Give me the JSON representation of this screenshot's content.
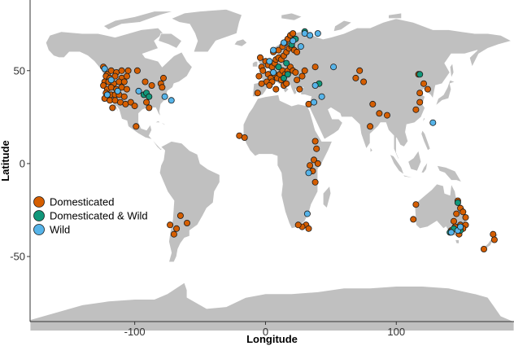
{
  "chart_data": {
    "type": "scatter",
    "title": "",
    "xlabel": "Longitude",
    "ylabel": "Latitude",
    "xlim": [
      -180,
      190
    ],
    "ylim": [
      -85,
      88
    ],
    "x_ticks": [
      -100,
      0,
      100
    ],
    "y_ticks": [
      -50,
      0,
      50
    ],
    "x_tick_labels": [
      "-100",
      "0",
      "100"
    ],
    "y_tick_labels": [
      "-50",
      "0",
      "50"
    ],
    "background": "world map (grey land, white borders)",
    "legend": {
      "placement": "left-bottom",
      "entries": [
        "Domesticated",
        "Domesticated & Wild",
        "Wild"
      ]
    },
    "colors": {
      "Domesticated": "#d55e00",
      "Domesticated & Wild": "#11977a",
      "Wild": "#56b4e9",
      "land": "#c0c0c0"
    },
    "series": [
      {
        "name": "Domesticated",
        "points": [
          [
            -124,
            52
          ],
          [
            -121,
            48
          ],
          [
            -118,
            50
          ],
          [
            -114,
            49
          ],
          [
            -110,
            50
          ],
          [
            -105,
            50
          ],
          [
            -98,
            50
          ],
          [
            -122,
            47
          ],
          [
            -119,
            46
          ],
          [
            -115,
            47
          ],
          [
            -110,
            46
          ],
          [
            -106,
            47
          ],
          [
            -123,
            44
          ],
          [
            -120,
            44
          ],
          [
            -116,
            43
          ],
          [
            -112,
            44
          ],
          [
            -108,
            44
          ],
          [
            -124,
            42
          ],
          [
            -121,
            40
          ],
          [
            -118,
            41
          ],
          [
            -114,
            40
          ],
          [
            -110,
            41
          ],
          [
            -106,
            40
          ],
          [
            -122,
            38
          ],
          [
            -118,
            37
          ],
          [
            -115,
            37
          ],
          [
            -112,
            37
          ],
          [
            -108,
            36
          ],
          [
            -123,
            35
          ],
          [
            -119,
            34
          ],
          [
            -115,
            34
          ],
          [
            -111,
            33
          ],
          [
            -107,
            32
          ],
          [
            -103,
            33
          ],
          [
            -100,
            31
          ],
          [
            -92,
            44
          ],
          [
            -87,
            42
          ],
          [
            -80,
            43
          ],
          [
            -79,
            41
          ],
          [
            -78,
            46
          ],
          [
            -91,
            33
          ],
          [
            -89,
            30
          ],
          [
            -99,
            20
          ],
          [
            -117,
            30
          ],
          [
            -3,
            52
          ],
          [
            0,
            55
          ],
          [
            -4,
            57
          ],
          [
            -2,
            50
          ],
          [
            2,
            53
          ],
          [
            5,
            52
          ],
          [
            7,
            54
          ],
          [
            8,
            56
          ],
          [
            10,
            57
          ],
          [
            12,
            56
          ],
          [
            14,
            58
          ],
          [
            16,
            60
          ],
          [
            18,
            62
          ],
          [
            20,
            63
          ],
          [
            22,
            61
          ],
          [
            24,
            60
          ],
          [
            6,
            60
          ],
          [
            10,
            61
          ],
          [
            13,
            63
          ],
          [
            15,
            65
          ],
          [
            17,
            67
          ],
          [
            19,
            69
          ],
          [
            21,
            70
          ],
          [
            2,
            48
          ],
          [
            4,
            46
          ],
          [
            7,
            48
          ],
          [
            9,
            46
          ],
          [
            11,
            48
          ],
          [
            13,
            50
          ],
          [
            15,
            48
          ],
          [
            17,
            50
          ],
          [
            19,
            52
          ],
          [
            21,
            50
          ],
          [
            23,
            49
          ],
          [
            -5,
            47
          ],
          [
            1,
            44
          ],
          [
            5,
            44
          ],
          [
            3,
            42
          ],
          [
            -3,
            43
          ],
          [
            -6,
            38
          ],
          [
            8,
            40
          ],
          [
            14,
            42
          ],
          [
            12,
            45
          ],
          [
            16,
            43
          ],
          [
            24,
            45
          ],
          [
            28,
            47
          ],
          [
            30,
            50
          ],
          [
            26,
            40
          ],
          [
            33,
            32
          ],
          [
            38,
            52
          ],
          [
            -20,
            15
          ],
          [
            -16,
            14
          ],
          [
            38,
            12
          ],
          [
            39,
            8
          ],
          [
            37,
            2
          ],
          [
            40,
            0
          ],
          [
            34,
            -1
          ],
          [
            36,
            -4
          ],
          [
            38,
            -10
          ],
          [
            31,
            -33
          ],
          [
            28,
            -34
          ],
          [
            25,
            -33
          ],
          [
            33,
            -35
          ],
          [
            -73,
            -33
          ],
          [
            -70,
            -38
          ],
          [
            -60,
            -32
          ],
          [
            -65,
            -28
          ],
          [
            -68,
            -35
          ],
          [
            72,
            50
          ],
          [
            69,
            46
          ],
          [
            75,
            44
          ],
          [
            82,
            32
          ],
          [
            87,
            27
          ],
          [
            93,
            26
          ],
          [
            80,
            20
          ],
          [
            117,
            48
          ],
          [
            121,
            43
          ],
          [
            118,
            38
          ],
          [
            124,
            40
          ],
          [
            115,
            29
          ],
          [
            118,
            33
          ],
          [
            115,
            -22
          ],
          [
            113,
            -30
          ],
          [
            146,
            -27
          ],
          [
            149,
            -24
          ],
          [
            147,
            -20
          ],
          [
            151,
            -26
          ],
          [
            153,
            -29
          ],
          [
            149,
            -33
          ],
          [
            145,
            -34
          ],
          [
            142,
            -36
          ],
          [
            148,
            -38
          ],
          [
            153,
            -33
          ],
          [
            151,
            -35
          ],
          [
            144,
            -31
          ],
          [
            167,
            -46
          ],
          [
            174,
            -38
          ],
          [
            175,
            -41
          ]
        ]
      },
      {
        "name": "Domesticated & Wild",
        "points": [
          [
            -93,
            37
          ],
          [
            -91,
            38
          ],
          [
            -89,
            36
          ],
          [
            14,
            46
          ],
          [
            17,
            48
          ],
          [
            10,
            52
          ],
          [
            16,
            54
          ],
          [
            20,
            64
          ],
          [
            23,
            67
          ],
          [
            30,
            71
          ],
          [
            41,
            43
          ],
          [
            118,
            48
          ],
          [
            147,
            -21
          ],
          [
            141,
            -37
          ],
          [
            144,
            -35
          ],
          [
            149,
            -36
          ]
        ]
      },
      {
        "name": "Wild",
        "points": [
          [
            -123,
            51
          ],
          [
            -118,
            45
          ],
          [
            -113,
            39
          ],
          [
            -121,
            37
          ],
          [
            -97,
            39
          ],
          [
            -77,
            36
          ],
          [
            -72,
            34
          ],
          [
            6,
            61
          ],
          [
            14,
            65
          ],
          [
            21,
            66
          ],
          [
            27,
            63
          ],
          [
            30,
            70
          ],
          [
            34,
            69
          ],
          [
            40,
            70
          ],
          [
            6,
            49
          ],
          [
            3,
            55
          ],
          [
            38,
            42
          ],
          [
            52,
            52
          ],
          [
            43,
            36
          ],
          [
            37,
            33
          ],
          [
            33,
            -5
          ],
          [
            32,
            -27
          ],
          [
            142,
            -37
          ],
          [
            147,
            -36
          ],
          [
            149,
            -34
          ],
          [
            128,
            22
          ]
        ]
      }
    ]
  }
}
